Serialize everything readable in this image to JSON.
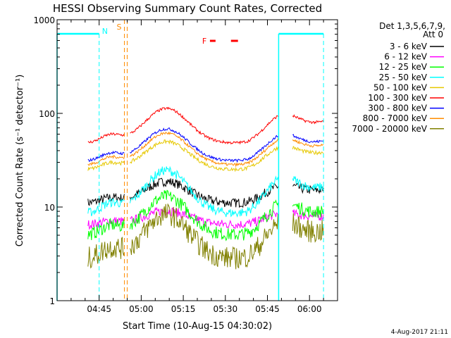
{
  "chart_data": {
    "type": "line",
    "title": "HESSI Observing Summary Count Rates, Corrected",
    "xlabel": "Start Time (10-Aug-15 04:30:02)",
    "ylabel": "Corrected Count Rate (s⁻¹ detector⁻¹)",
    "yscale": "log",
    "ylim": [
      1,
      1000
    ],
    "xlim_minutes": [
      0,
      100
    ],
    "x_ticks": [
      {
        "m": 15,
        "label": "04:45"
      },
      {
        "m": 30,
        "label": "05:00"
      },
      {
        "m": 45,
        "label": "05:15"
      },
      {
        "m": 60,
        "label": "05:30"
      },
      {
        "m": 75,
        "label": "05:45"
      },
      {
        "m": 90,
        "label": "06:00"
      }
    ],
    "y_ticks": [
      {
        "v": 1,
        "label": "1"
      },
      {
        "v": 10,
        "label": "10"
      },
      {
        "v": 100,
        "label": "100"
      },
      {
        "v": 1000,
        "label": "1000"
      }
    ],
    "legend_header": [
      "Det 1,3,5,6,7,9,",
      "Att 0"
    ],
    "legend_position": "right",
    "annotations": {
      "night": "N",
      "saa": "S",
      "flare": "F"
    },
    "footer_date": "4-Aug-2017 21:11",
    "data_gaps": [
      [
        0,
        11
      ],
      [
        24,
        26
      ],
      [
        79,
        84
      ],
      [
        95,
        100
      ]
    ],
    "night_markers_m": [
      15,
      95
    ],
    "night_lines_m": [
      0,
      79
    ],
    "saa_markers_m": [
      24,
      25
    ],
    "flare_intervals_m": [
      [
        54.5,
        56.5
      ],
      [
        62,
        64.5
      ]
    ],
    "series": [
      {
        "name": "3 - 6 keV",
        "color": "#000000",
        "base": 11,
        "amp": 1.7,
        "noise": 0.05
      },
      {
        "name": "6 - 12 keV",
        "color": "#ff00ff",
        "base": 6.5,
        "amp": 1.4,
        "noise": 0.05
      },
      {
        "name": "12 - 25 keV",
        "color": "#00ff00",
        "base": 5,
        "amp": 2.6,
        "noise": 0.07
      },
      {
        "name": "25 - 50 keV",
        "color": "#00ffff",
        "base": 8.5,
        "amp": 2.9,
        "noise": 0.05
      },
      {
        "name": "50 - 100 keV",
        "color": "#e6c800",
        "base": 25,
        "amp": 2.0,
        "noise": 0.02
      },
      {
        "name": "100 - 300 keV",
        "color": "#ff0000",
        "base": 48,
        "amp": 2.35,
        "noise": 0.015
      },
      {
        "name": "300 - 800 keV",
        "color": "#0000ff",
        "base": 31,
        "amp": 2.2,
        "noise": 0.015
      },
      {
        "name": "800 - 7000 keV",
        "color": "#ff8c00",
        "base": 28,
        "amp": 2.2,
        "noise": 0.015
      },
      {
        "name": "7000 - 20000 keV",
        "color": "#808000",
        "base": 2.8,
        "amp": 3.0,
        "noise": 0.12
      }
    ]
  }
}
